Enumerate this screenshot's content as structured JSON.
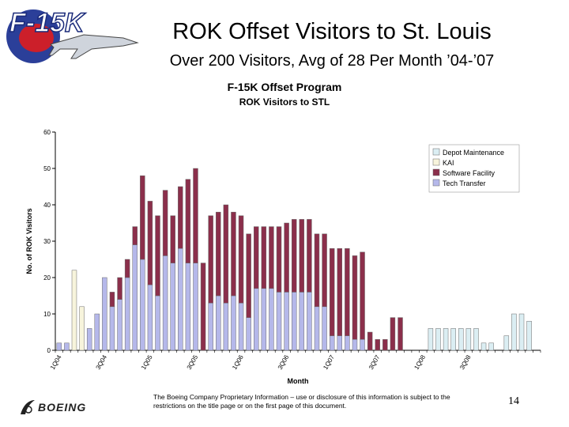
{
  "slide": {
    "title": "ROK Offset Visitors to St. Louis",
    "subtitle": "Over 200 Visitors, Avg of 28 Per Month ’04-’07",
    "logo_text": "F-15K",
    "footer_logo_text": "BOEING",
    "footer_text": "The Boeing Company Proprietary Information – use or disclosure of this information is subject to the restrictions on the title page or on the first page of this document.",
    "page_number": "14"
  },
  "colors": {
    "depot_maintenance": "#dbeef3",
    "kai": "#f7f4dc",
    "software_facility": "#8b2f4b",
    "tech_transfer": "#b5b8ea"
  },
  "chart_data": {
    "type": "bar",
    "stacked": true,
    "title": "F-15K Offset Program",
    "subtitle": "ROK Visitors to STL",
    "xlabel": "Month",
    "ylabel": "No. of ROK Visitors",
    "ylim": [
      0,
      60
    ],
    "yticks": [
      0,
      10,
      20,
      30,
      40,
      50,
      60
    ],
    "grid": false,
    "legend_position": "top-right",
    "tick_labels": [
      {
        "label": "1Q04",
        "index": 0
      },
      {
        "label": "3Q04",
        "index": 6
      },
      {
        "label": "1Q05",
        "index": 12
      },
      {
        "label": "3Q05",
        "index": 18
      },
      {
        "label": "1Q06",
        "index": 24
      },
      {
        "label": "3Q06",
        "index": 30
      },
      {
        "label": "1Q07",
        "index": 36
      },
      {
        "label": "3Q07",
        "index": 42
      },
      {
        "label": "1Q08",
        "index": 48
      },
      {
        "label": "3Q08",
        "index": 54
      }
    ],
    "series": [
      {
        "name": "Depot Maintenance",
        "color_key": "depot_maintenance",
        "values": [
          0,
          0,
          0,
          0,
          0,
          0,
          0,
          0,
          0,
          0,
          0,
          0,
          0,
          0,
          0,
          0,
          0,
          0,
          0,
          0,
          0,
          0,
          0,
          0,
          0,
          0,
          0,
          0,
          0,
          0,
          0,
          0,
          0,
          0,
          0,
          0,
          0,
          0,
          0,
          0,
          0,
          0,
          0,
          0,
          0,
          0,
          0,
          0,
          0,
          6,
          6,
          6,
          6,
          6,
          6,
          6,
          2,
          2,
          0,
          4,
          10,
          10,
          8,
          0
        ]
      },
      {
        "name": "KAI",
        "color_key": "kai",
        "values": [
          0,
          0,
          22,
          12,
          0,
          0,
          0,
          0,
          0,
          0,
          0,
          0,
          0,
          0,
          0,
          0,
          0,
          0,
          0,
          0,
          0,
          0,
          0,
          0,
          0,
          0,
          0,
          0,
          0,
          0,
          0,
          0,
          0,
          0,
          0,
          0,
          0,
          0,
          0,
          0,
          0,
          0,
          0,
          0,
          0,
          0,
          0,
          0,
          0,
          0,
          0,
          0,
          0,
          0,
          0,
          0,
          0,
          0,
          0,
          0,
          0,
          0,
          0,
          0
        ]
      },
      {
        "name": "Software Facility",
        "color_key": "software_facility",
        "values": [
          0,
          0,
          0,
          0,
          0,
          0,
          0,
          4,
          6,
          5,
          5,
          23,
          23,
          22,
          18,
          13,
          17,
          23,
          26,
          24,
          24,
          23,
          27,
          23,
          24,
          23,
          17,
          17,
          17,
          18,
          19,
          20,
          20,
          20,
          20,
          20,
          24,
          24,
          24,
          23,
          24,
          5,
          3,
          3,
          9,
          9,
          0,
          0,
          0,
          0,
          0,
          0,
          0,
          0,
          0,
          0,
          0,
          0,
          0,
          0,
          0,
          0,
          0,
          0
        ]
      },
      {
        "name": "Tech Transfer",
        "color_key": "tech_transfer",
        "values": [
          2,
          2,
          0,
          0,
          6,
          10,
          20,
          12,
          14,
          20,
          29,
          25,
          18,
          15,
          26,
          24,
          28,
          24,
          24,
          0,
          13,
          15,
          13,
          15,
          13,
          9,
          17,
          17,
          17,
          16,
          16,
          16,
          16,
          16,
          12,
          12,
          4,
          4,
          4,
          3,
          3,
          0,
          0,
          0,
          0,
          0,
          0,
          0,
          0,
          0,
          0,
          0,
          0,
          0,
          0,
          0,
          0,
          0,
          0,
          0,
          0,
          0,
          0,
          0
        ]
      }
    ]
  }
}
